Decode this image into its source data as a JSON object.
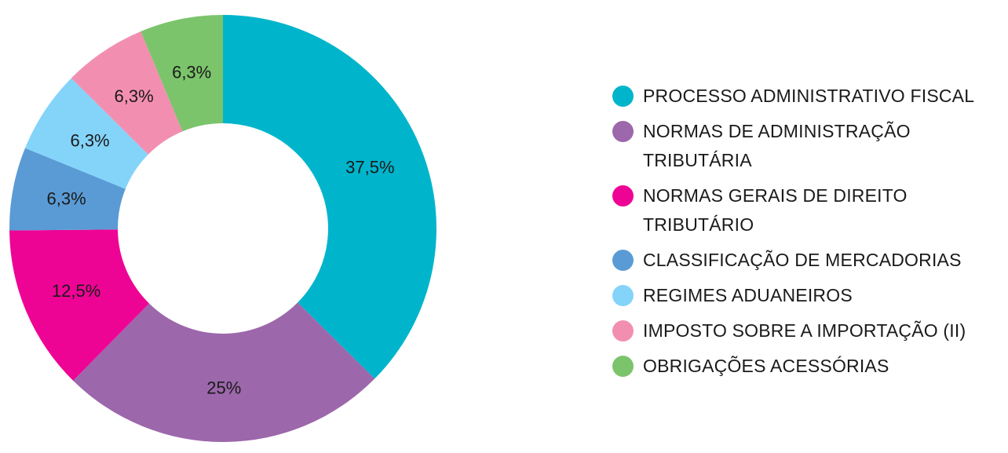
{
  "chart_data": {
    "type": "pie",
    "donut": true,
    "legend_position": "right",
    "slices": [
      {
        "label": "PROCESSO ADMINISTRATIVO FISCAL",
        "value": 37.5,
        "display": "37,5%",
        "color": "#00b5cb"
      },
      {
        "label": "NORMAS DE ADMINISTRAÇÃO TRIBUTÁRIA",
        "value": 25,
        "display": "25%",
        "color": "#9c67ab"
      },
      {
        "label": "NORMAS GERAIS DE DIREITO TRIBUTÁRIO",
        "value": 12.5,
        "display": "12,5%",
        "color": "#ee0495"
      },
      {
        "label": "CLASSIFICAÇÃO DE MERCADORIAS",
        "value": 6.3,
        "display": "6,3%",
        "color": "#5a9bd5"
      },
      {
        "label": "REGIMES ADUANEIROS",
        "value": 6.3,
        "display": "6,3%",
        "color": "#84d4fa"
      },
      {
        "label": "IMPOSTO SOBRE A IMPORTAÇÃO (II)",
        "value": 6.3,
        "display": "6,3%",
        "color": "#f28fb1"
      },
      {
        "label": "OBRIGAÇÕES ACESSÓRIAS",
        "value": 6.3,
        "display": "6,3%",
        "color": "#7bc46b"
      }
    ]
  }
}
